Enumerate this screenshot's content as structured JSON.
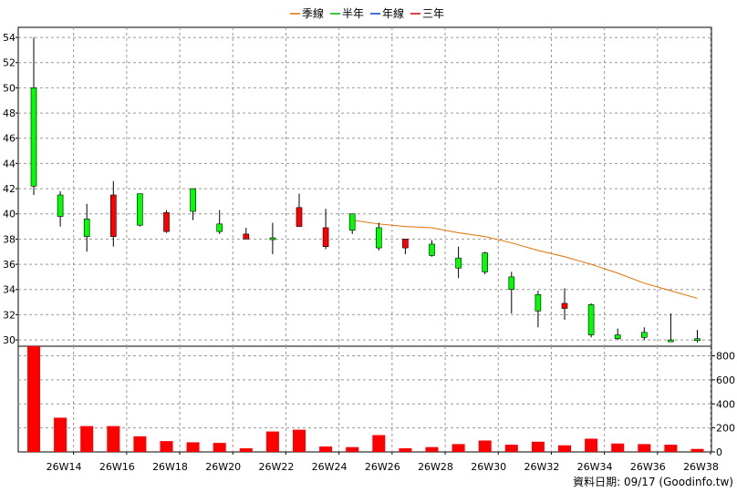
{
  "chart_data": {
    "type": "candlestick_with_volume",
    "legend": [
      {
        "name": "季線",
        "color": "#e07000"
      },
      {
        "name": "半年",
        "color": "#00b000"
      },
      {
        "name": "年線",
        "color": "#0040c0"
      },
      {
        "name": "三年",
        "color": "#e00000"
      }
    ],
    "price_axis": {
      "ylim": [
        29.5,
        54.8
      ],
      "ticks": [
        30,
        32,
        34,
        36,
        38,
        40,
        42,
        44,
        46,
        48,
        50,
        52,
        54
      ]
    },
    "volume_axis": {
      "ylim": [
        0,
        880
      ],
      "ticks": [
        0,
        200,
        400,
        600,
        800
      ]
    },
    "x_tick_labels": [
      "26W14",
      "26W16",
      "26W18",
      "26W20",
      "26W22",
      "26W24",
      "26W26",
      "26W28",
      "26W30",
      "26W32",
      "26W34",
      "26W36",
      "26W38"
    ],
    "weeks": [
      "26W13",
      "26W14",
      "26W15",
      "26W16",
      "26W17",
      "26W18",
      "26W19",
      "26W20",
      "26W21",
      "26W22",
      "26W23",
      "26W24",
      "26W25",
      "26W26",
      "26W27",
      "26W28",
      "26W29",
      "26W30",
      "26W31",
      "26W32",
      "26W33",
      "26W34",
      "26W35",
      "26W36",
      "26W37",
      "26W38"
    ],
    "candles": [
      {
        "o": 42.2,
        "h": 54.0,
        "l": 41.5,
        "c": 50.0
      },
      {
        "o": 39.8,
        "h": 41.8,
        "l": 39.0,
        "c": 41.5
      },
      {
        "o": 38.2,
        "h": 40.8,
        "l": 37.0,
        "c": 39.6
      },
      {
        "o": 41.5,
        "h": 42.6,
        "l": 37.4,
        "c": 38.2
      },
      {
        "o": 39.1,
        "h": 41.6,
        "l": 39.0,
        "c": 41.6
      },
      {
        "o": 40.1,
        "h": 40.3,
        "l": 38.5,
        "c": 38.6
      },
      {
        "o": 40.2,
        "h": 42.0,
        "l": 39.5,
        "c": 42.0
      },
      {
        "o": 38.6,
        "h": 40.3,
        "l": 38.4,
        "c": 39.2
      },
      {
        "o": 38.4,
        "h": 38.9,
        "l": 38.0,
        "c": 38.0
      },
      {
        "o": 38.1,
        "h": 39.3,
        "l": 36.8,
        "c": 38.1
      },
      {
        "o": 40.5,
        "h": 41.6,
        "l": 39.0,
        "c": 39.0
      },
      {
        "o": 38.9,
        "h": 40.4,
        "l": 37.2,
        "c": 37.4
      },
      {
        "o": 38.7,
        "h": 40.0,
        "l": 38.4,
        "c": 40.0
      },
      {
        "o": 37.3,
        "h": 39.3,
        "l": 37.1,
        "c": 38.9
      },
      {
        "o": 38.0,
        "h": 38.0,
        "l": 36.8,
        "c": 37.3
      },
      {
        "o": 36.7,
        "h": 37.9,
        "l": 36.6,
        "c": 37.6
      },
      {
        "o": 35.7,
        "h": 37.4,
        "l": 34.9,
        "c": 36.5
      },
      {
        "o": 35.4,
        "h": 37.0,
        "l": 35.2,
        "c": 36.9
      },
      {
        "o": 34.0,
        "h": 35.4,
        "l": 32.1,
        "c": 35.0
      },
      {
        "o": 32.3,
        "h": 33.9,
        "l": 31.0,
        "c": 33.6
      },
      {
        "o": 32.9,
        "h": 34.1,
        "l": 31.6,
        "c": 32.5
      },
      {
        "o": 30.4,
        "h": 32.9,
        "l": 30.2,
        "c": 32.8
      },
      {
        "o": 30.1,
        "h": 30.9,
        "l": 30.0,
        "c": 30.4
      },
      {
        "o": 30.2,
        "h": 31.0,
        "l": 30.0,
        "c": 30.6
      },
      {
        "o": 30.0,
        "h": 32.1,
        "l": 29.9,
        "c": 30.0
      },
      {
        "o": 30.0,
        "h": 30.8,
        "l": 29.8,
        "c": 30.1
      }
    ],
    "series": [
      {
        "name": "季線",
        "start_index": 12,
        "values": [
          39.5,
          39.2,
          39.0,
          38.9,
          38.5,
          38.2,
          37.7,
          37.1,
          36.6,
          36.0,
          35.3,
          34.5,
          33.9,
          33.3
        ]
      }
    ],
    "volume": [
      890,
      285,
      215,
      215,
      130,
      90,
      80,
      75,
      30,
      170,
      185,
      45,
      40,
      140,
      30,
      40,
      65,
      95,
      60,
      85,
      55,
      110,
      70,
      65,
      60,
      25
    ],
    "grid": true
  },
  "footer": "資料日期: 09/17  (Goodinfo.tw)"
}
